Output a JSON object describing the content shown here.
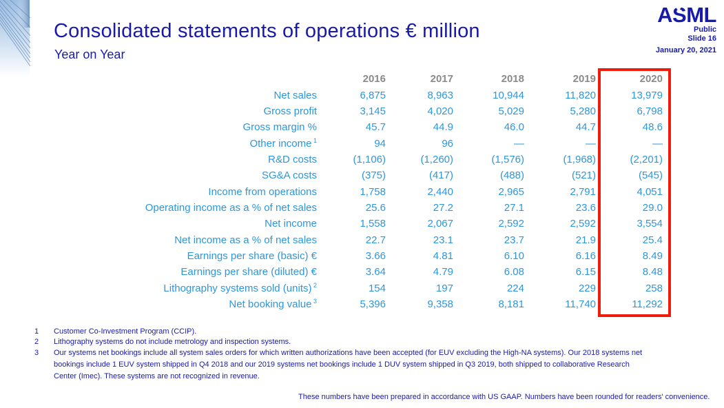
{
  "header": {
    "title": "Consolidated statements of operations € million",
    "subtitle": "Year on Year"
  },
  "logo": {
    "brand": "ASML",
    "classification": "Public",
    "slide": "Slide 16",
    "date": "January 20, 2021"
  },
  "chart_data": {
    "type": "table",
    "title": "Consolidated statements of operations € million",
    "categories": [
      "2016",
      "2017",
      "2018",
      "2019",
      "2020"
    ],
    "series": [
      {
        "name": "Net sales",
        "values": [
          "6,875",
          "8,963",
          "10,944",
          "11,820",
          "13,979"
        ]
      },
      {
        "name": "Gross profit",
        "values": [
          "3,145",
          "4,020",
          "5,029",
          "5,280",
          "6,798"
        ]
      },
      {
        "name": "Gross margin %",
        "values": [
          "45.7",
          "44.9",
          "46.0",
          "44.7",
          "48.6"
        ]
      },
      {
        "name": "Other income",
        "values": [
          "94",
          "96",
          "—",
          "—",
          "—"
        ]
      },
      {
        "name": "R&D costs",
        "values": [
          "(1,106)",
          "(1,260)",
          "(1,576)",
          "(1,968)",
          "(2,201)"
        ]
      },
      {
        "name": "SG&A costs",
        "values": [
          "(375)",
          "(417)",
          "(488)",
          "(521)",
          "(545)"
        ]
      },
      {
        "name": "Income from operations",
        "values": [
          "1,758",
          "2,440",
          "2,965",
          "2,791",
          "4,051"
        ]
      },
      {
        "name": "Operating income as a % of net sales",
        "values": [
          "25.6",
          "27.2",
          "27.1",
          "23.6",
          "29.0"
        ]
      },
      {
        "name": "Net income",
        "values": [
          "1,558",
          "2,067",
          "2,592",
          "2,592",
          "3,554"
        ]
      },
      {
        "name": "Net income as a % of net sales",
        "values": [
          "22.7",
          "23.1",
          "23.7",
          "21.9",
          "25.4"
        ]
      },
      {
        "name": "Earnings per share (basic) €",
        "values": [
          "3.66",
          "4.81",
          "6.10",
          "6.16",
          "8.49"
        ]
      },
      {
        "name": "Earnings per share (diluted) €",
        "values": [
          "3.64",
          "4.79",
          "6.08",
          "6.15",
          "8.48"
        ]
      },
      {
        "name": "Lithography systems sold (units)",
        "values": [
          "154",
          "197",
          "224",
          "229",
          "258"
        ]
      },
      {
        "name": "Net booking value",
        "values": [
          "5,396",
          "9,358",
          "8,181",
          "11,740",
          "11,292"
        ]
      }
    ]
  },
  "table": {
    "years": [
      "2016",
      "2017",
      "2018",
      "2019",
      "2020"
    ],
    "highlight_year": "2020",
    "rows": [
      {
        "label": "Net sales",
        "sup": "",
        "values": [
          "6,875",
          "8,963",
          "10,944",
          "11,820",
          "13,979"
        ]
      },
      {
        "label": "Gross profit",
        "sup": "",
        "values": [
          "3,145",
          "4,020",
          "5,029",
          "5,280",
          "6,798"
        ]
      },
      {
        "label": "Gross margin %",
        "sup": "",
        "values": [
          "45.7",
          "44.9",
          "46.0",
          "44.7",
          "48.6"
        ]
      },
      {
        "label": "Other income",
        "sup": "1",
        "values": [
          "94",
          "96",
          "—",
          "—",
          "—"
        ]
      },
      {
        "label": "R&D costs",
        "sup": "",
        "values": [
          "(1,106)",
          "(1,260)",
          "(1,576)",
          "(1,968)",
          "(2,201)"
        ]
      },
      {
        "label": "SG&A costs",
        "sup": "",
        "values": [
          "(375)",
          "(417)",
          "(488)",
          "(521)",
          "(545)"
        ]
      },
      {
        "label": "Income from operations",
        "sup": "",
        "values": [
          "1,758",
          "2,440",
          "2,965",
          "2,791",
          "4,051"
        ]
      },
      {
        "label": "Operating income as a % of net sales",
        "sup": "",
        "values": [
          "25.6",
          "27.2",
          "27.1",
          "23.6",
          "29.0"
        ]
      },
      {
        "label": "Net income",
        "sup": "",
        "values": [
          "1,558",
          "2,067",
          "2,592",
          "2,592",
          "3,554"
        ]
      },
      {
        "label": "Net income as a % of net sales",
        "sup": "",
        "values": [
          "22.7",
          "23.1",
          "23.7",
          "21.9",
          "25.4"
        ]
      },
      {
        "label": "Earnings per share (basic) €",
        "sup": "",
        "values": [
          "3.66",
          "4.81",
          "6.10",
          "6.16",
          "8.49"
        ]
      },
      {
        "label": "Earnings per share (diluted) €",
        "sup": "",
        "values": [
          "3.64",
          "4.79",
          "6.08",
          "6.15",
          "8.48"
        ]
      },
      {
        "label": "Lithography systems sold (units)",
        "sup": "2",
        "values": [
          "154",
          "197",
          "224",
          "229",
          "258"
        ]
      },
      {
        "label": "Net booking value",
        "sup": "3",
        "values": [
          "5,396",
          "9,358",
          "8,181",
          "11,740",
          "11,292"
        ]
      }
    ]
  },
  "footnotes": [
    {
      "num": "1",
      "text": "Customer Co-Investment Program (CCIP)."
    },
    {
      "num": "2",
      "text": "Lithography systems do not include metrology and inspection systems."
    },
    {
      "num": "3",
      "text": "Our systems net bookings include all system sales orders for which written authorizations have been accepted (for EUV excluding the High-NA systems). Our 2018 systems net bookings include 1 EUV system shipped in Q4 2018 and our 2019 systems net bookings include 1 DUV system shipped in Q3 2019, both shipped to collaborative Research Center (Imec). These systems are not recognized in revenue."
    }
  ],
  "footer_note": "These numbers have been prepared in accordance with US GAAP. Numbers have been rounded for readers' convenience.",
  "colors": {
    "navy": "#171aab",
    "table_blue": "#2d96dc",
    "year_gray": "#8a8a8a",
    "highlight_red": "#ee1c0c"
  }
}
